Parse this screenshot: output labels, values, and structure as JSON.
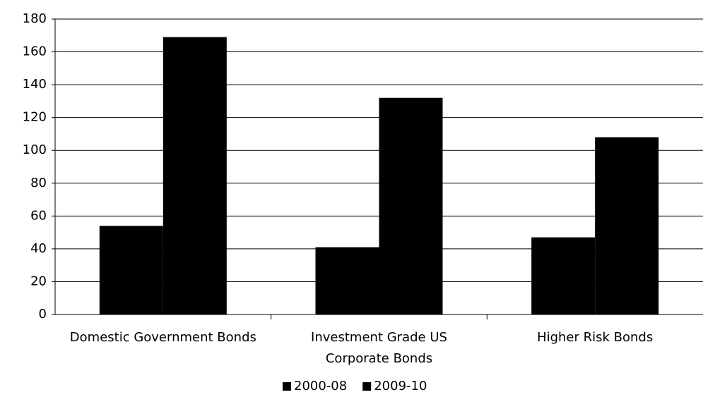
{
  "chart_data": {
    "type": "bar",
    "categories": [
      "Domestic Government Bonds",
      "Investment Grade US Corporate Bonds",
      "Higher Risk Bonds"
    ],
    "series": [
      {
        "name": "2000-08",
        "color": "#000000",
        "values": [
          54,
          41,
          47
        ]
      },
      {
        "name": "2009-10",
        "color": "#000000",
        "values": [
          169,
          132,
          108
        ]
      }
    ],
    "ylim": [
      0,
      180
    ],
    "yticks": [
      0,
      20,
      40,
      60,
      80,
      100,
      120,
      140,
      160,
      180
    ],
    "grid": true,
    "legend": "bottom"
  }
}
